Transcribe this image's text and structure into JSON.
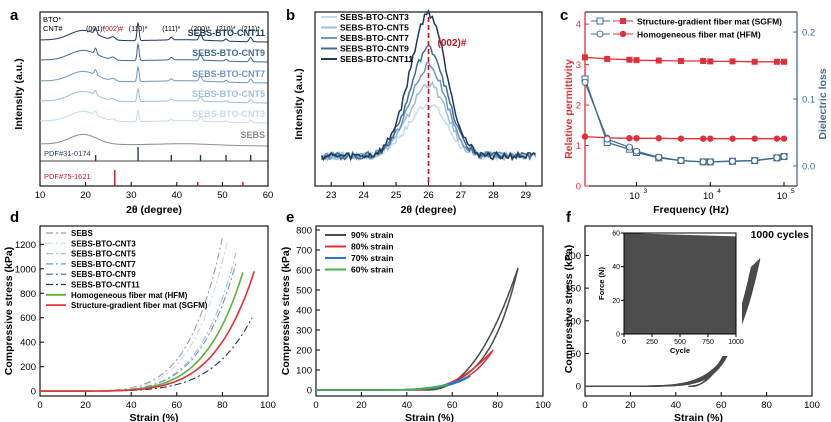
{
  "chart_data": [
    {
      "panel": "a",
      "type": "line",
      "xlabel": "2θ (degree)",
      "ylabel": "Intensity (a.u.)",
      "xlim": [
        10,
        60
      ],
      "xticks": [
        "10",
        "20",
        "30",
        "40",
        "50",
        "60"
      ],
      "legend_header": [
        "BTO*",
        "CNT#"
      ],
      "peak_labels": [
        {
          "x": 22.2,
          "text": "(001)*",
          "color": "#000000"
        },
        {
          "x": 26.0,
          "text": "(002)#",
          "color": "#c0141c"
        },
        {
          "x": 31.5,
          "text": "(110)*",
          "color": "#000000"
        },
        {
          "x": 38.8,
          "text": "(111)*",
          "color": "#000000"
        },
        {
          "x": 45.2,
          "text": "(200)*",
          "color": "#000000"
        },
        {
          "x": 50.8,
          "text": "(210)*",
          "color": "#000000"
        },
        {
          "x": 56.2,
          "text": "(211)*",
          "color": "#000000"
        }
      ],
      "series": [
        {
          "name": "SEBS-BTO-CNT11",
          "color": "#1f3a5a"
        },
        {
          "name": "SEBS-BTO-CNT9",
          "color": "#3f6b94"
        },
        {
          "name": "SEBS-BTO-CNT7",
          "color": "#6c97c0"
        },
        {
          "name": "SEBS-BTO-CNT5",
          "color": "#9dbfdc"
        },
        {
          "name": "SEBS-BTO-CNT3",
          "color": "#c5daec"
        },
        {
          "name": "SEBS",
          "color": "#8c8c8c"
        }
      ],
      "references": [
        {
          "name": "PDF#31-0174",
          "color": "#1f3a5a",
          "peaks": [
            22.2,
            31.5,
            38.8,
            45.2,
            50.8,
            56.2
          ]
        },
        {
          "name": "PDF#75-1621",
          "color": "#c0141c",
          "peaks": [
            26.4,
            44.6,
            54.5
          ]
        }
      ]
    },
    {
      "panel": "b",
      "type": "line",
      "xlabel": "2θ (degree)",
      "ylabel": "Intensity (a.u.)",
      "xlim": [
        22.5,
        29.5
      ],
      "xticks": [
        "23",
        "24",
        "25",
        "26",
        "27",
        "28",
        "29"
      ],
      "annotation": "(002)#",
      "marker_x": 26,
      "series": [
        {
          "name": "SEBS-BTO-CNT3",
          "color": "#c5daec",
          "peak": 0.35
        },
        {
          "name": "SEBS-BTO-CNT5",
          "color": "#9dbfdc",
          "peak": 0.48
        },
        {
          "name": "SEBS-BTO-CNT7",
          "color": "#6c97c0",
          "peak": 0.6
        },
        {
          "name": "SEBS-BTO-CNT9",
          "color": "#3f6b94",
          "peak": 0.72
        },
        {
          "name": "SEBS-BTO-CNT11",
          "color": "#1f3a5a",
          "peak": 0.95
        }
      ]
    },
    {
      "panel": "c",
      "type": "line",
      "xlabel": "Frequency (Hz)",
      "ylabel": "Relative permittivity",
      "y2label": "Dielectric loss",
      "xscale": "log",
      "xlim": [
        200,
        150000
      ],
      "ylim": [
        0,
        4.3
      ],
      "y2lim": [
        -0.03,
        0.23
      ],
      "xticks": [
        {
          "v": 1000,
          "t": "10"
        },
        {
          "v": 10000,
          "t": "10"
        },
        {
          "v": 100000,
          "t": "10"
        }
      ],
      "xtick_exp": [
        "3",
        "4",
        "5"
      ],
      "yticks": [
        "0",
        "1",
        "2",
        "3",
        "4"
      ],
      "y2ticks": [
        "0.0",
        "0.1",
        "0.2"
      ],
      "x": [
        200,
        400,
        800,
        1000,
        2000,
        4000,
        8000,
        10000,
        20000,
        40000,
        80000,
        100000
      ],
      "series": [
        {
          "name": "Structure-gradient fiber mat (SGFM)",
          "marker": "square",
          "color": "#e2303a",
          "permittivity": [
            3.18,
            3.14,
            3.12,
            3.11,
            3.1,
            3.09,
            3.09,
            3.08,
            3.08,
            3.07,
            3.07,
            3.07
          ],
          "loss": [
            0.13,
            0.035,
            0.025,
            0.02,
            0.012,
            0.008,
            0.006,
            0.006,
            0.007,
            0.008,
            0.012,
            0.014
          ]
        },
        {
          "name": "Homogeneous fiber mat (HFM)",
          "marker": "circle",
          "color": "#e2303a",
          "permittivity": [
            1.22,
            1.19,
            1.18,
            1.18,
            1.18,
            1.17,
            1.17,
            1.17,
            1.17,
            1.17,
            1.17,
            1.17
          ],
          "loss": [
            0.125,
            0.04,
            0.028,
            0.022,
            0.013,
            0.008,
            0.006,
            0.006,
            0.007,
            0.008,
            0.012,
            0.014
          ]
        }
      ]
    },
    {
      "panel": "d",
      "type": "line",
      "xlabel": "Strain (%)",
      "ylabel": "Compressive stress (kPa)",
      "xlim": [
        0,
        100
      ],
      "ylim": [
        -40,
        1350
      ],
      "xticks": [
        "0",
        "20",
        "40",
        "60",
        "80",
        "100"
      ],
      "yticks": [
        "0",
        "200",
        "400",
        "600",
        "800",
        "1000",
        "1200"
      ],
      "series": [
        {
          "name": "SEBS",
          "color": "#9a9a9a",
          "dash": "7 3 2 3",
          "end": [
            80,
            1250
          ]
        },
        {
          "name": "SEBS-BTO-CNT3",
          "color": "#c5daec",
          "dash": "7 3 2 3",
          "end": [
            82,
            1210
          ]
        },
        {
          "name": "SEBS-BTO-CNT5",
          "color": "#9dbfdc",
          "dash": "7 3 2 3",
          "end": [
            86,
            1130
          ]
        },
        {
          "name": "SEBS-BTO-CNT7",
          "color": "#6c97c0",
          "dash": "7 3 2 3",
          "end": [
            86,
            1050
          ]
        },
        {
          "name": "SEBS-BTO-CNT9",
          "color": "#3f6b94",
          "dash": "7 3 2 3",
          "end": [
            91,
            820
          ]
        },
        {
          "name": "SEBS-BTO-CNT11",
          "color": "#1f3a5a",
          "dash": "7 3 2 3",
          "end": [
            93,
            600
          ]
        },
        {
          "name": "Homogeneous fiber mat (HFM)",
          "color": "#5cb335",
          "dash": "",
          "end": [
            89,
            970
          ]
        },
        {
          "name": "Structure-gradient fiber mat (SGFM)",
          "color": "#e2303a",
          "dash": "",
          "end": [
            94,
            980
          ]
        }
      ]
    },
    {
      "panel": "e",
      "type": "line",
      "xlabel": "Strain (%)",
      "ylabel": "Compressive stress (kPa)",
      "xlim": [
        0,
        100
      ],
      "ylim": [
        -30,
        820
      ],
      "xticks": [
        "0",
        "20",
        "40",
        "60",
        "80",
        "100"
      ],
      "yticks": [
        "0",
        "100",
        "200",
        "300",
        "400",
        "500",
        "600",
        "700",
        "800"
      ],
      "series": [
        {
          "name": "90% strain",
          "color": "#4a4a4a",
          "max_strain": 89,
          "max_stress": 610
        },
        {
          "name": "80% strain",
          "color": "#e2303a",
          "max_strain": 78,
          "max_stress": 200
        },
        {
          "name": "70% strain",
          "color": "#2a77c9",
          "max_strain": 68,
          "max_stress": 70
        },
        {
          "name": "60% strain",
          "color": "#3fb34f",
          "max_strain": 58,
          "max_stress": 28
        }
      ]
    },
    {
      "panel": "f",
      "type": "line",
      "xlabel": "Strain (%)",
      "ylabel": "Compressive stress (kPa)",
      "xlim": [
        0,
        100
      ],
      "ylim": [
        -15,
        245
      ],
      "xticks": [
        "0",
        "20",
        "40",
        "60",
        "80",
        "100"
      ],
      "yticks": [
        "0",
        "50",
        "100",
        "150",
        "200"
      ],
      "annotation": "1000 cycles",
      "max_strain": 77,
      "max_stress": 195,
      "inset": {
        "xlabel": "Cycle",
        "ylabel": "Force (N)",
        "xlim": [
          0,
          1000
        ],
        "ylim": [
          0,
          60
        ],
        "xticks": [
          "0",
          "250",
          "500",
          "750",
          "1000"
        ],
        "yticks": [
          "0",
          "20",
          "40",
          "60"
        ],
        "force_start": 60,
        "force_end": 58
      }
    }
  ],
  "panel_letters": [
    "a",
    "b",
    "c",
    "d",
    "e",
    "f"
  ]
}
